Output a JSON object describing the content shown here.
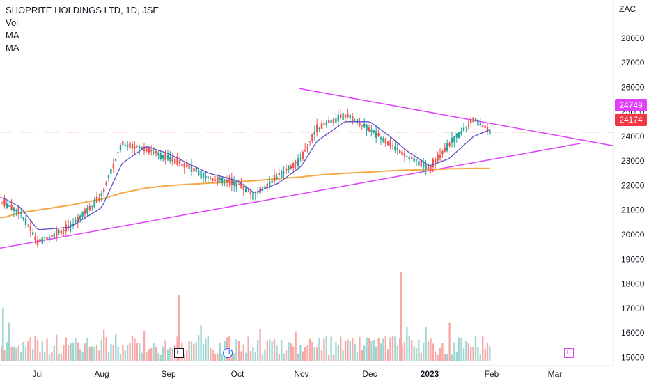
{
  "legend": {
    "title": "SHOPRITE HOLDINGS LTD, 1D, JSE",
    "indicators": [
      "Vol",
      "MA",
      "MA"
    ]
  },
  "currency": "ZAC",
  "price_tags": [
    {
      "value": "24749",
      "color": "#e040fb"
    },
    {
      "value": "24174",
      "color": "#f23645"
    }
  ],
  "markers": [
    {
      "label": "E",
      "type": "earnings",
      "color": "#131722"
    },
    {
      "label": "D",
      "type": "dividend",
      "color": "#2962ff"
    },
    {
      "label": "E",
      "type": "earnings-future",
      "color": "#e040fb"
    }
  ],
  "colors": {
    "up": "#26a69a",
    "down": "#ef5350",
    "ma_fast": "#5b4ec7",
    "ma_slow": "#f5a742",
    "trendline": "#e040fb",
    "volume_up": "#9fd7d0",
    "volume_down": "#f7a9a7"
  },
  "chart_data": {
    "type": "candlestick",
    "title": "SHOPRITE HOLDINGS LTD, 1D, JSE",
    "y_axis": {
      "unit": "ZAC",
      "ticks": [
        15000,
        16000,
        17000,
        18000,
        19000,
        20000,
        21000,
        22000,
        23000,
        24000,
        25000,
        26000,
        27000,
        28000
      ]
    },
    "x_axis": {
      "ticks": [
        "Jul",
        "Aug",
        "Sep",
        "Oct",
        "Nov",
        "Dec",
        "2023",
        "Feb",
        "Mar"
      ]
    },
    "last_close": 24174,
    "horizontal_line": 24749,
    "price_series": [
      {
        "period": "Jun-end",
        "close": 21300
      },
      {
        "period": "Jul-early",
        "close": 20900
      },
      {
        "period": "Jul-mid",
        "close": 19700
      },
      {
        "period": "Jul-late",
        "close": 20300
      },
      {
        "period": "Aug-early",
        "close": 21600
      },
      {
        "period": "Aug-mid",
        "close": 23700
      },
      {
        "period": "Aug-late",
        "close": 23500
      },
      {
        "period": "Sep-early",
        "close": 23100
      },
      {
        "period": "Sep-mid",
        "close": 22800
      },
      {
        "period": "Sep-late",
        "close": 22300
      },
      {
        "period": "Oct-early",
        "close": 22100
      },
      {
        "period": "Oct-mid",
        "close": 21600
      },
      {
        "period": "Oct-late",
        "close": 22400
      },
      {
        "period": "Nov-early",
        "close": 23100
      },
      {
        "period": "Nov-mid",
        "close": 24300
      },
      {
        "period": "Nov-late",
        "close": 24900
      },
      {
        "period": "Dec-early",
        "close": 24300
      },
      {
        "period": "Dec-mid",
        "close": 23700
      },
      {
        "period": "Dec-late",
        "close": 23200
      },
      {
        "period": "Jan-early",
        "close": 22700
      },
      {
        "period": "Jan-mid",
        "close": 23700
      },
      {
        "period": "Jan-late",
        "close": 24700
      },
      {
        "period": "Feb-early",
        "close": 24174
      }
    ],
    "ma_fast": [
      21500,
      21100,
      20200,
      20300,
      21100,
      22900,
      23600,
      23300,
      22900,
      22500,
      22200,
      21700,
      22100,
      22800,
      23800,
      24600,
      24600,
      24000,
      23400,
      22800,
      23100,
      24000,
      24300
    ],
    "ma_slow": [
      20700,
      20900,
      21000,
      21200,
      21450,
      21700,
      21900,
      22000,
      22050,
      22100,
      22150,
      22200,
      22280,
      22350,
      22420,
      22500,
      22550,
      22600,
      22630,
      22650,
      22680,
      22700,
      22700
    ],
    "trendlines": [
      {
        "name": "upper",
        "from": {
          "period": "Oct-late",
          "price": 25950
        },
        "to": {
          "period": "Mar-late",
          "price": 23600
        }
      },
      {
        "name": "lower",
        "from": {
          "period": "Jun-end",
          "price": 19450
        },
        "to": {
          "period": "Mar-mid",
          "price": 23700
        }
      }
    ],
    "volume_markers": [
      "E (Sep)",
      "D (Oct)",
      "E (Mar)"
    ],
    "grid": false
  }
}
